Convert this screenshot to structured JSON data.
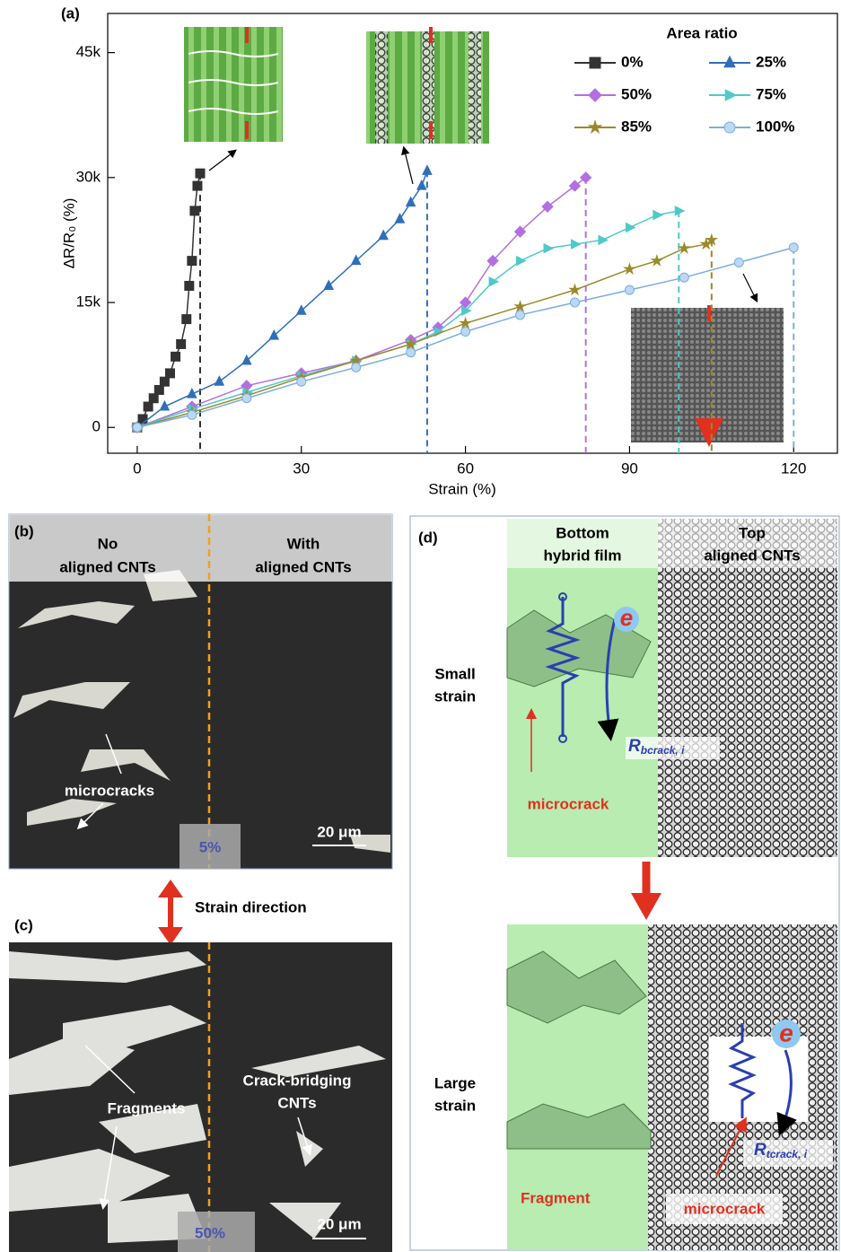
{
  "chart_data": {
    "type": "line",
    "panel_label": "(a)",
    "x_label": "Strain (%)",
    "y_label": "ΔR/R₀ (%)",
    "legend_title": "Area ratio",
    "legend": "upper right",
    "xlim": [
      -5.4,
      128
    ],
    "ylim": [
      -3100,
      49700
    ],
    "xticks": [
      0,
      30,
      60,
      90,
      120
    ],
    "yticks": [
      0,
      {
        "value": 15000,
        "label": "15k"
      },
      {
        "value": 30000,
        "label": "30k"
      },
      {
        "value": 45000,
        "label": "45k"
      }
    ],
    "series": [
      {
        "name": "0%",
        "color": "#333333",
        "marker": "square",
        "x": [
          0,
          1,
          2,
          3,
          4,
          5,
          6,
          7,
          8,
          9,
          9.5,
          10,
          10.5,
          11,
          11.5
        ],
        "values": [
          0,
          1000,
          2500,
          3500,
          4500,
          5500,
          6500,
          8500,
          10000,
          13000,
          17000,
          20000,
          26000,
          29000,
          30500
        ]
      },
      {
        "name": "25%",
        "color": "#2f6fba",
        "marker": "triangle",
        "x": [
          0,
          5,
          10,
          15,
          20,
          25,
          30,
          35,
          40,
          45,
          48,
          50,
          52,
          53
        ],
        "values": [
          0,
          2500,
          4000,
          5500,
          8000,
          11000,
          14000,
          17000,
          20000,
          23000,
          25000,
          27000,
          29000,
          30800
        ]
      },
      {
        "name": "50%",
        "color": "#b36fe0",
        "marker": "diamond",
        "x": [
          0,
          10,
          20,
          30,
          40,
          50,
          55,
          60,
          65,
          70,
          75,
          80,
          82
        ],
        "values": [
          0,
          2500,
          5000,
          6500,
          8000,
          10500,
          12000,
          15000,
          20000,
          23500,
          26500,
          29000,
          30000
        ]
      },
      {
        "name": "75%",
        "color": "#4fc9c9",
        "marker": "triangle-right",
        "x": [
          0,
          10,
          20,
          30,
          40,
          50,
          55,
          60,
          65,
          70,
          75,
          80,
          85,
          90,
          95,
          99
        ],
        "values": [
          0,
          2200,
          4200,
          6200,
          8000,
          10000,
          11500,
          14000,
          17500,
          20000,
          21500,
          22000,
          22500,
          24000,
          25500,
          26000
        ]
      },
      {
        "name": "85%",
        "color": "#9b8a2a",
        "marker": "star",
        "x": [
          0,
          10,
          20,
          30,
          40,
          50,
          60,
          70,
          80,
          90,
          95,
          100,
          104,
          105
        ],
        "values": [
          0,
          1800,
          3800,
          6000,
          8000,
          10000,
          12500,
          14500,
          16500,
          19000,
          20000,
          21500,
          22000,
          22500
        ]
      },
      {
        "name": "100%",
        "color": "#7aaee0",
        "marker": "circle",
        "x": [
          0,
          10,
          20,
          30,
          40,
          50,
          60,
          70,
          80,
          90,
          100,
          110,
          120
        ],
        "values": [
          0,
          1500,
          3500,
          5500,
          7200,
          9000,
          11500,
          13500,
          15000,
          16500,
          18000,
          19800,
          21600
        ]
      }
    ]
  },
  "panel_b": {
    "label": "(b)",
    "left_header": [
      "No",
      "aligned CNTs"
    ],
    "right_header": [
      "With",
      "aligned CNTs"
    ],
    "annotation": "microcracks",
    "scale_bar": "20 μm",
    "strain": "5%"
  },
  "strain_direction": "Strain direction",
  "panel_c": {
    "label": "(c)",
    "left_annotation": "Fragments",
    "right_annotation": [
      "Crack-bridging",
      "CNTs"
    ],
    "scale_bar": "20 μm",
    "strain": "50%"
  },
  "panel_d": {
    "label": "(d)",
    "left_header": [
      "Bottom",
      "hybrid film"
    ],
    "right_header": [
      "Top",
      "aligned CNTs"
    ],
    "row_labels": [
      [
        "Small",
        "strain"
      ],
      [
        "Large",
        "strain"
      ]
    ],
    "top": {
      "crack": "microcrack",
      "electron": "e",
      "resistance": {
        "main": "R",
        "sub": "bcrack, i"
      }
    },
    "bottom": {
      "fragment": "Fragment",
      "crack": "microcrack",
      "electron": "e",
      "resistance": {
        "main": "R",
        "sub": "tcrack, i"
      }
    }
  }
}
